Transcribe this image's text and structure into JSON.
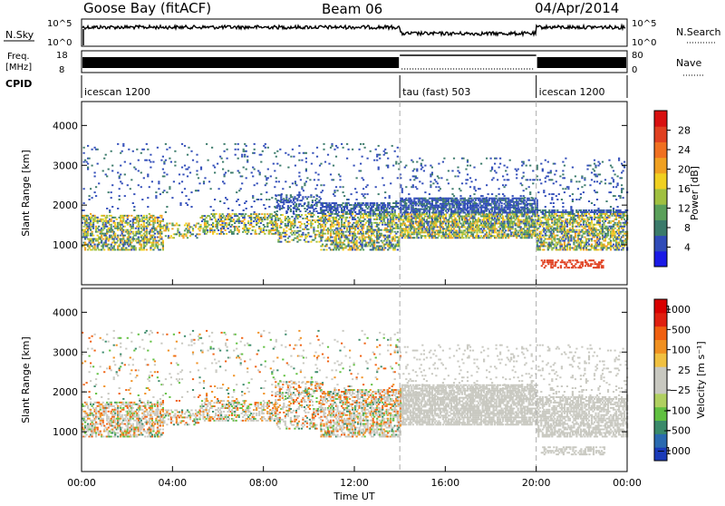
{
  "header": {
    "title_left": "Goose Bay (fitACF)",
    "title_center": "Beam 06",
    "title_right": "04/Apr/2014"
  },
  "nsky_panel": {
    "label": "N.Sky",
    "ticks": [
      "10^5",
      "10^0"
    ],
    "right_label": "N.Search",
    "right_ticks": [
      "10^5",
      "10^0"
    ]
  },
  "freq_panel": {
    "label_line1": "Freq.",
    "label_line2": "[MHz]",
    "ticks": [
      "18",
      "8"
    ],
    "right_label": "Nave",
    "right_ticks": [
      "80",
      "0"
    ]
  },
  "cpid_panel": {
    "label": "CPID",
    "segments": [
      {
        "name": "icescan 1200",
        "start_hour": 0,
        "end_hour": 14
      },
      {
        "name": "tau (fast) 503",
        "start_hour": 14,
        "end_hour": 20
      },
      {
        "name": "icescan 1200",
        "start_hour": 20,
        "end_hour": 24
      }
    ]
  },
  "chart_data": [
    {
      "type": "heatmap",
      "name": "power",
      "ylabel": "Slant Range [km]",
      "yticks": [
        "1000",
        "2000",
        "3000",
        "4000"
      ],
      "ylim": [
        0,
        4600
      ],
      "colorbar_label": "Power [dB]",
      "colorbar_ticks": [
        "4",
        "8",
        "12",
        "16",
        "20",
        "24",
        "28"
      ],
      "colorbar_colors": [
        "#1a1ae6",
        "#2f4bb8",
        "#3a7a6a",
        "#5aa05a",
        "#a0c040",
        "#f0d020",
        "#f0a020",
        "#f07020",
        "#e04020",
        "#d81010"
      ]
    },
    {
      "type": "heatmap",
      "name": "velocity",
      "ylabel": "Slant Range [km]",
      "yticks": [
        "1000",
        "2000",
        "3000",
        "4000"
      ],
      "ylim": [
        0,
        4600
      ],
      "colorbar_label": "Velocity [m s⁻¹]",
      "colorbar_ticks": [
        "1000",
        "500",
        "100",
        "25",
        "−25",
        "−100",
        "−500",
        "−1000"
      ],
      "colorbar_colors": [
        "#1a3ab8",
        "#2a6ab0",
        "#3a8a6a",
        "#60c040",
        "#b0d060",
        "#c8c8c0",
        "#c8c8c0",
        "#f0c040",
        "#f09020",
        "#f06010",
        "#e02010",
        "#d80000"
      ]
    }
  ],
  "xaxis": {
    "label": "Time UT",
    "ticks": [
      "00:00",
      "04:00",
      "08:00",
      "12:00",
      "16:00",
      "20:00",
      "00:00"
    ],
    "range_hours": [
      0,
      24
    ],
    "dashed_lines_hours": [
      14,
      20
    ]
  }
}
